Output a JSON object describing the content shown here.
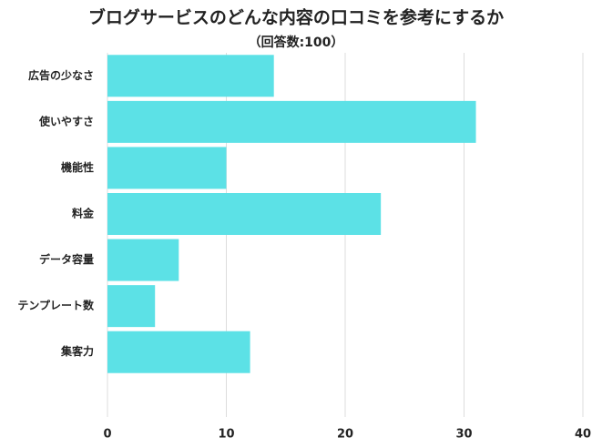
{
  "chart_data": {
    "type": "bar",
    "orientation": "horizontal",
    "title": "ブログサービスのどんな内容の口コミを参考にするか",
    "subtitle": "（回答数:100）",
    "categories": [
      "広告の少なさ",
      "使いやすさ",
      "機能性",
      "料金",
      "データ容量",
      "テンプレート数",
      "集客力"
    ],
    "values": [
      14,
      31,
      10,
      23,
      6,
      4,
      12
    ],
    "color": "#5ce1e6",
    "xlim": [
      0,
      40
    ],
    "xticks": [
      0,
      10,
      20,
      30,
      40
    ],
    "grid": true
  }
}
